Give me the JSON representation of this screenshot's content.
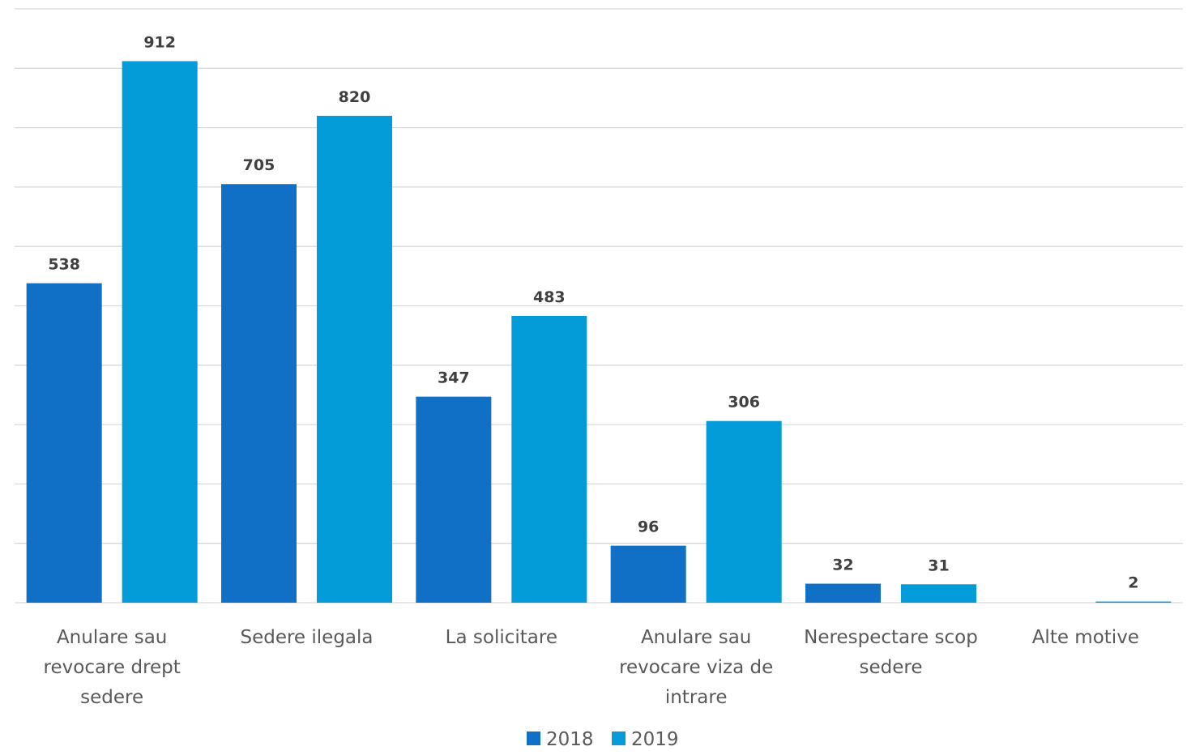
{
  "chart_data": {
    "type": "bar",
    "categories": [
      "Anulare sau revocare drept sedere",
      "Sedere ilegala",
      "La solicitare",
      "Anulare sau revocare viza de intrare",
      "Nerespectare scop sedere",
      "Alte motive"
    ],
    "category_lines": [
      [
        "Anulare sau",
        "revocare drept",
        "sedere"
      ],
      [
        "Sedere ilegala"
      ],
      [
        "La solicitare"
      ],
      [
        "Anulare sau",
        "revocare viza de",
        "intrare"
      ],
      [
        "Nerespectare scop",
        "sedere"
      ],
      [
        "Alte motive"
      ]
    ],
    "series": [
      {
        "name": "2018",
        "color": "#0f70c5",
        "values": [
          538,
          705,
          347,
          96,
          32,
          null
        ]
      },
      {
        "name": "2019",
        "color": "#039bd8",
        "values": [
          912,
          820,
          483,
          306,
          31,
          2
        ]
      }
    ],
    "ylim": [
      0,
      1000
    ],
    "y_gridline_step": 100,
    "grid": true,
    "y_tick_labels_shown": false,
    "data_labels": true,
    "legend_position": "bottom"
  }
}
